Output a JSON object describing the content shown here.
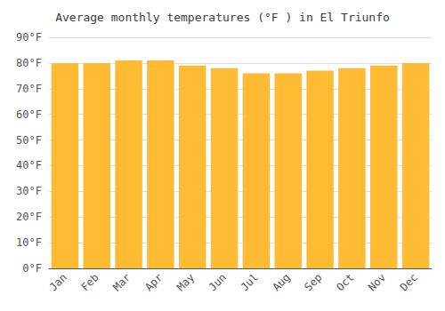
{
  "chart_data": {
    "type": "bar",
    "title": "Average monthly temperatures (°F ) in El Triunfo",
    "categories": [
      "Jan",
      "Feb",
      "Mar",
      "Apr",
      "May",
      "Jun",
      "Jul",
      "Aug",
      "Sep",
      "Oct",
      "Nov",
      "Dec"
    ],
    "values": [
      80,
      80,
      81,
      81,
      79,
      78,
      76,
      76,
      77,
      78,
      79,
      80
    ],
    "color": "#FFBB33",
    "ylim": [
      0,
      90
    ],
    "yticks": [
      {
        "value": 0,
        "label": "0°F"
      },
      {
        "value": 10,
        "label": "10°F"
      },
      {
        "value": 20,
        "label": "20°F"
      },
      {
        "value": 30,
        "label": "30°F"
      },
      {
        "value": 40,
        "label": "40°F"
      },
      {
        "value": 50,
        "label": "50°F"
      },
      {
        "value": 60,
        "label": "60°F"
      },
      {
        "value": 70,
        "label": "70°F"
      },
      {
        "value": 80,
        "label": "80°F"
      },
      {
        "value": 90,
        "label": "90°F"
      }
    ],
    "grid": true
  }
}
